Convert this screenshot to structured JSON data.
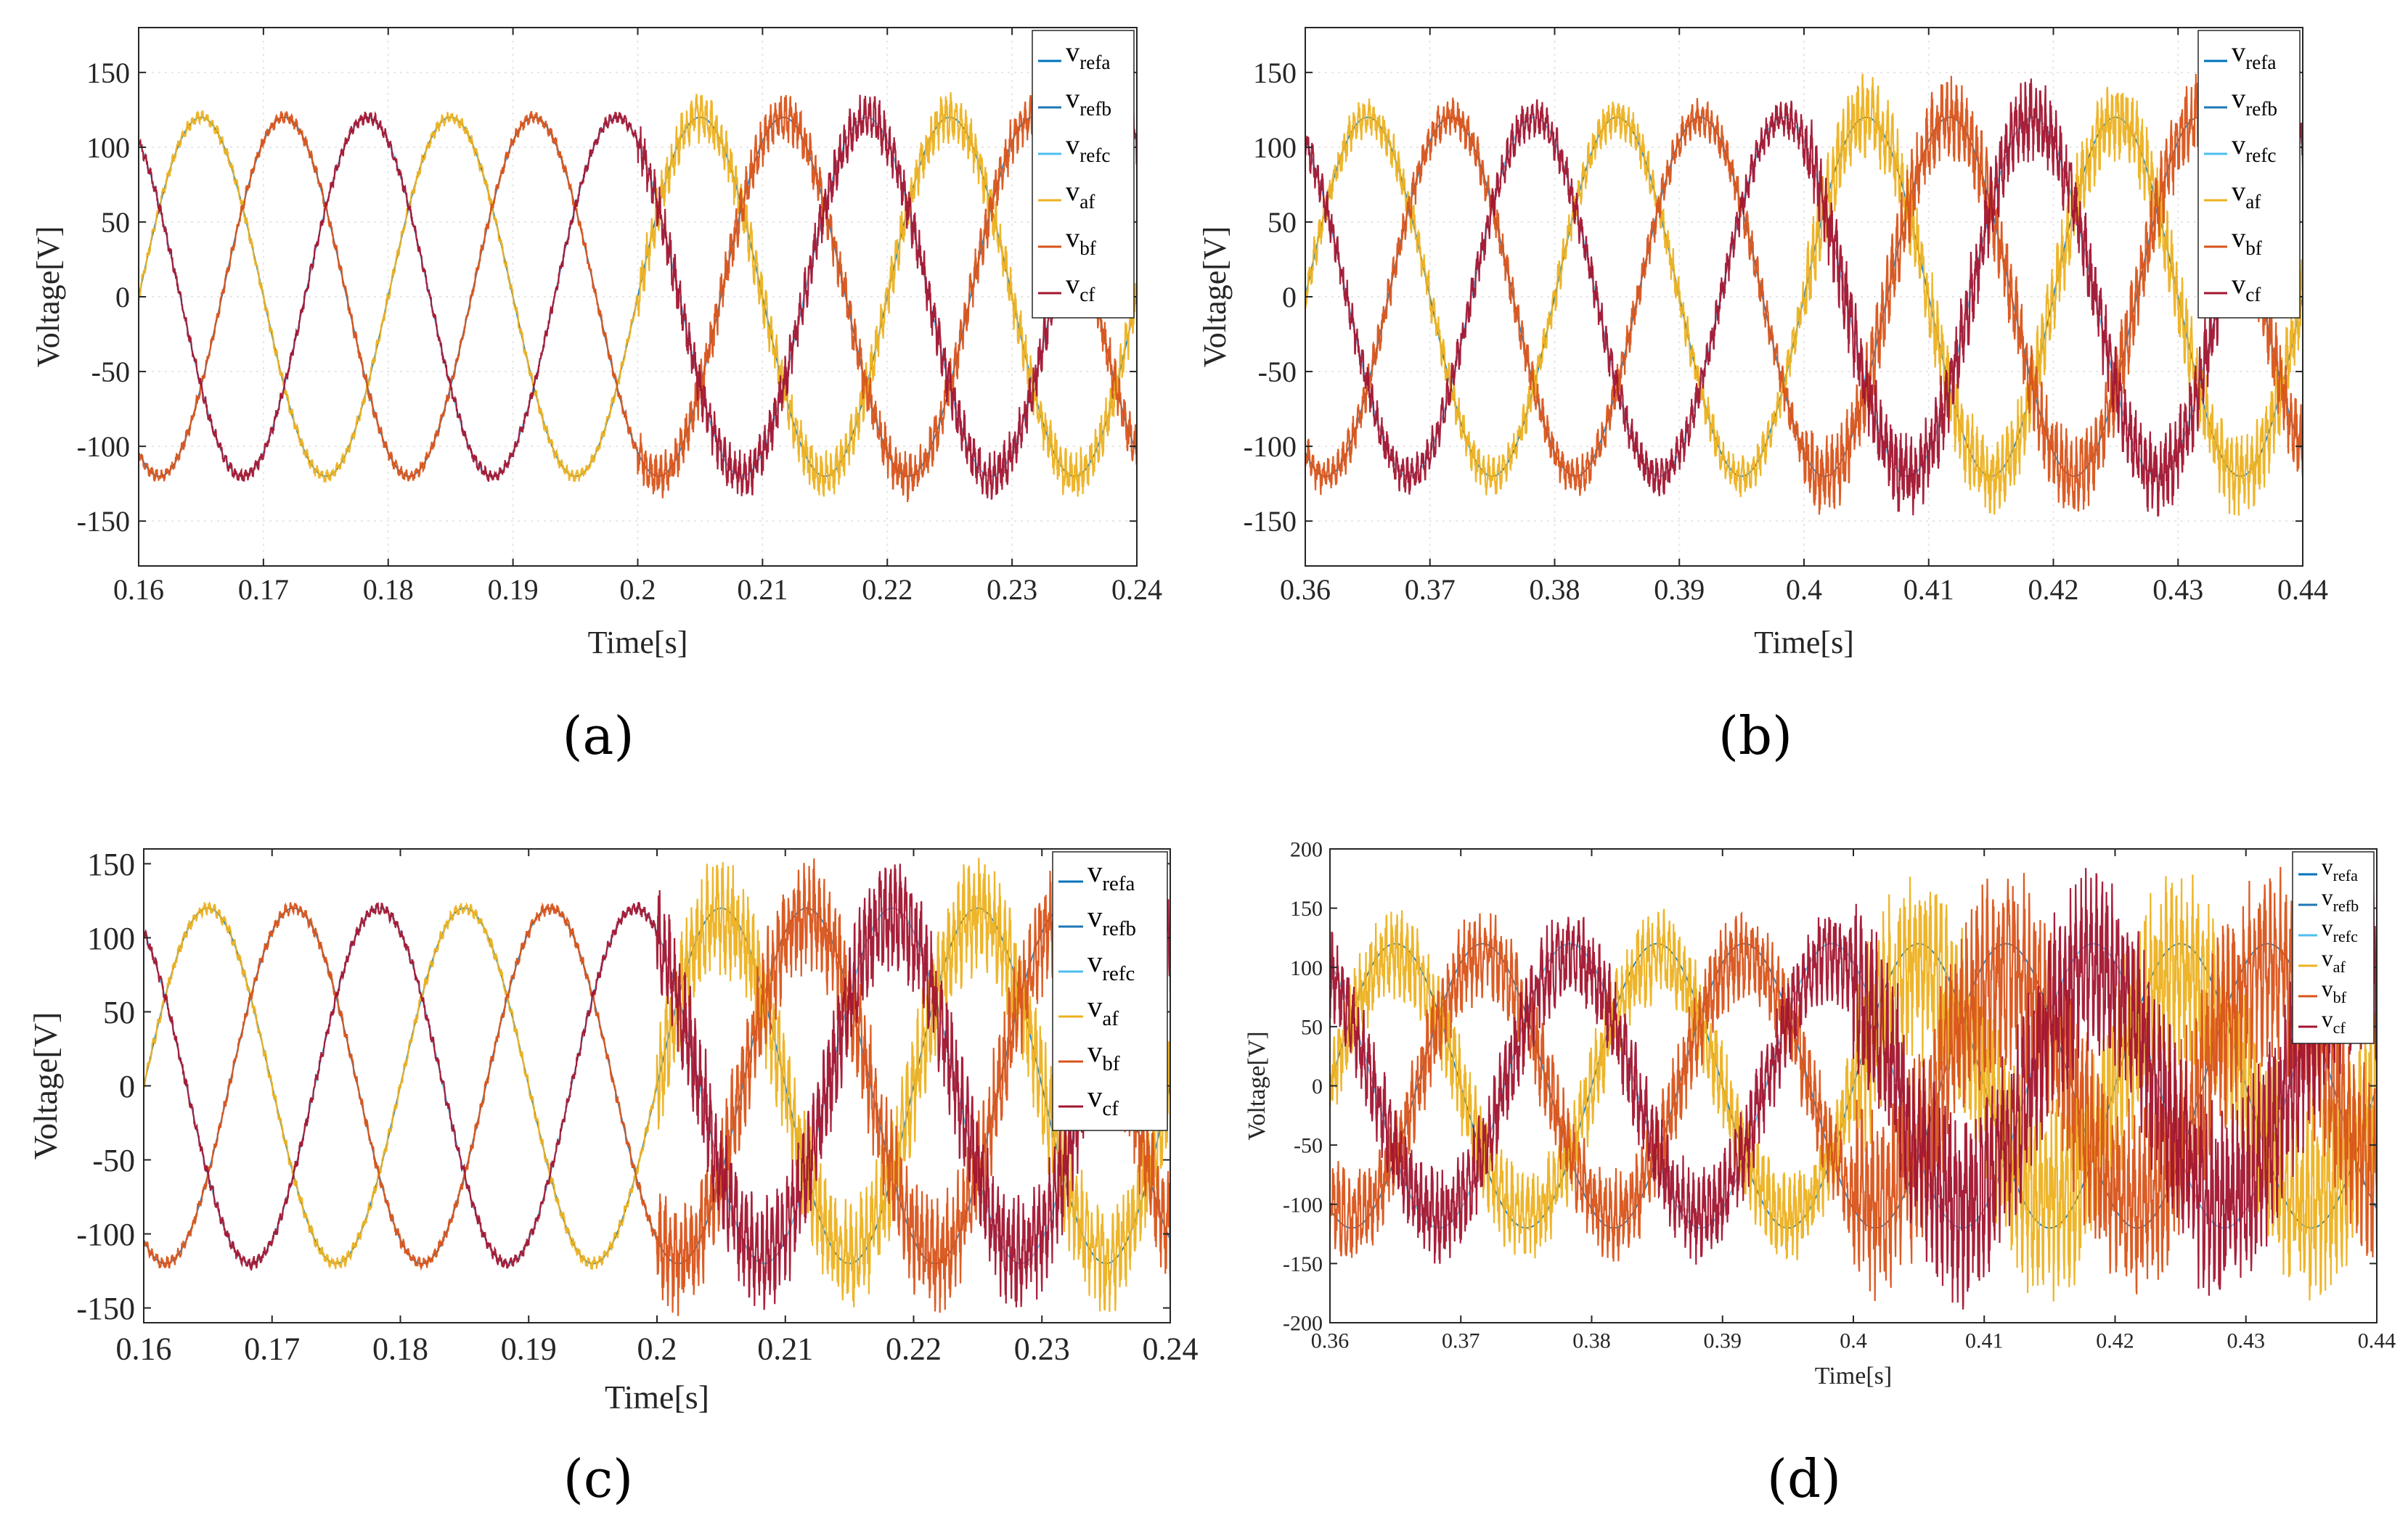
{
  "colors": {
    "vrefa": "#0072BD",
    "vrefb": "#1F77B4",
    "vrefc": "#4DBEEE",
    "vaf": "#EDB120",
    "vbf": "#D95319",
    "vcf": "#A2142F",
    "grid": "#e6e6e6",
    "axis": "#262626"
  },
  "panel_labels": [
    "(a)",
    "(b)",
    "(c)",
    "(d)"
  ],
  "chart_data": [
    {
      "type": "line",
      "panel": "(a)",
      "xlabel": "Time[s]",
      "ylabel": "Voltage[V]",
      "xlim": [
        0.16,
        0.24
      ],
      "ylim": [
        -180,
        180
      ],
      "xticks": [
        0.16,
        0.17,
        0.18,
        0.19,
        0.2,
        0.21,
        0.22,
        0.23,
        0.24
      ],
      "xtick_labels": [
        "0.16",
        "0.17",
        "0.18",
        "0.19",
        "0.2",
        "0.21",
        "0.22",
        "0.23",
        "0.24"
      ],
      "yticks": [
        -150,
        -100,
        -50,
        0,
        50,
        100,
        150
      ],
      "ytick_labels": [
        "-150",
        "-100",
        "-50",
        "0",
        "50",
        "100",
        "150"
      ],
      "grid": true,
      "legend_position": "top-right",
      "legend": [
        {
          "name": "v",
          "sub": "refa"
        },
        {
          "name": "v",
          "sub": "refb"
        },
        {
          "name": "v",
          "sub": "refc"
        },
        {
          "name": "v",
          "sub": "af"
        },
        {
          "name": "v",
          "sub": "bf"
        },
        {
          "name": "v",
          "sub": "cf"
        }
      ],
      "reference_amplitude": 120,
      "frequency_hz": 50,
      "filtered_amplitude_before": 120,
      "filtered_amplitude_after": 120,
      "ripple_before": 4,
      "ripple_after": 15,
      "disturbance_time": 0.2
    },
    {
      "type": "line",
      "panel": "(b)",
      "xlabel": "Time[s]",
      "ylabel": "Voltage[V]",
      "xlim": [
        0.36,
        0.44
      ],
      "ylim": [
        -180,
        180
      ],
      "xticks": [
        0.36,
        0.37,
        0.38,
        0.39,
        0.4,
        0.41,
        0.42,
        0.43,
        0.44
      ],
      "xtick_labels": [
        "0.36",
        "0.37",
        "0.38",
        "0.39",
        "0.4",
        "0.41",
        "0.42",
        "0.43",
        "0.44"
      ],
      "yticks": [
        -150,
        -100,
        -50,
        0,
        50,
        100,
        150
      ],
      "ytick_labels": [
        "-150",
        "-100",
        "-50",
        "0",
        "50",
        "100",
        "150"
      ],
      "grid": true,
      "legend_position": "top-right",
      "legend": [
        {
          "name": "v",
          "sub": "refa"
        },
        {
          "name": "v",
          "sub": "refb"
        },
        {
          "name": "v",
          "sub": "refc"
        },
        {
          "name": "v",
          "sub": "af"
        },
        {
          "name": "v",
          "sub": "bf"
        },
        {
          "name": "v",
          "sub": "cf"
        }
      ],
      "reference_amplitude": 120,
      "frequency_hz": 50,
      "filtered_amplitude_before": 120,
      "filtered_amplitude_after": 120,
      "ripple_before": 12,
      "ripple_after": 25,
      "disturbance_time": 0.4
    },
    {
      "type": "line",
      "panel": "(c)",
      "xlabel": "Time[s]",
      "ylabel": "Voltage[V]",
      "xlim": [
        0.16,
        0.24
      ],
      "ylim": [
        -160,
        160
      ],
      "xticks": [
        0.16,
        0.17,
        0.18,
        0.19,
        0.2,
        0.21,
        0.22,
        0.23,
        0.24
      ],
      "xtick_labels": [
        "0.16",
        "0.17",
        "0.18",
        "0.19",
        "0.2",
        "0.21",
        "0.22",
        "0.23",
        "0.24"
      ],
      "yticks": [
        -150,
        -100,
        -50,
        0,
        50,
        100,
        150
      ],
      "ytick_labels": [
        "-150",
        "-100",
        "-50",
        "0",
        "50",
        "100",
        "150"
      ],
      "grid": false,
      "legend_position": "top-right",
      "legend": [
        {
          "name": "v",
          "sub": "refa"
        },
        {
          "name": "v",
          "sub": "refb"
        },
        {
          "name": "v",
          "sub": "refc"
        },
        {
          "name": "v",
          "sub": "af"
        },
        {
          "name": "v",
          "sub": "bf"
        },
        {
          "name": "v",
          "sub": "cf"
        }
      ],
      "reference_amplitude": 120,
      "frequency_hz": 50,
      "filtered_amplitude_before": 120,
      "filtered_amplitude_after": 115,
      "ripple_before": 4,
      "ripple_after": 35,
      "disturbance_time": 0.2
    },
    {
      "type": "line",
      "panel": "(d)",
      "xlabel": "Time[s]",
      "ylabel": "Voltage[V]",
      "xlim": [
        0.36,
        0.44
      ],
      "ylim": [
        -200,
        200
      ],
      "xticks": [
        0.36,
        0.37,
        0.38,
        0.39,
        0.4,
        0.41,
        0.42,
        0.43,
        0.44
      ],
      "xtick_labels": [
        "0.36",
        "0.37",
        "0.38",
        "0.39",
        "0.4",
        "0.41",
        "0.42",
        "0.43",
        "0.44"
      ],
      "yticks": [
        -200,
        -150,
        -100,
        -50,
        0,
        50,
        100,
        150,
        200
      ],
      "ytick_labels": [
        "-200",
        "-150",
        "-100",
        "-50",
        "0",
        "50",
        "100",
        "150",
        "200"
      ],
      "grid": false,
      "legend_position": "top-right",
      "legend": [
        {
          "name": "v",
          "sub": "refa"
        },
        {
          "name": "v",
          "sub": "refb"
        },
        {
          "name": "v",
          "sub": "refc"
        },
        {
          "name": "v",
          "sub": "af"
        },
        {
          "name": "v",
          "sub": "bf"
        },
        {
          "name": "v",
          "sub": "cf"
        }
      ],
      "reference_amplitude": 120,
      "frequency_hz": 50,
      "filtered_amplitude_before": 110,
      "filtered_amplitude_after": 100,
      "ripple_before": 35,
      "ripple_after": 75,
      "disturbance_time": 0.4
    }
  ]
}
